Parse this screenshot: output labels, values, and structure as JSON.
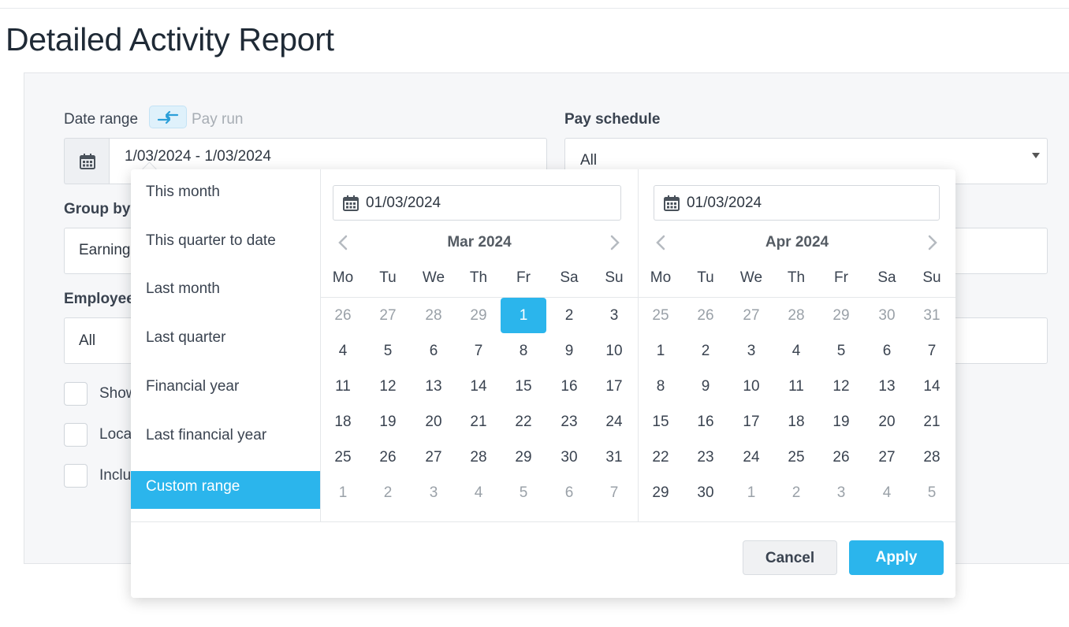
{
  "page": {
    "title": "Detailed Activity Report"
  },
  "form": {
    "date_range_label": "Date range",
    "pay_run_label": "Pay run",
    "date_range_value": "1/03/2024 - 1/03/2024",
    "pay_schedule_label": "Pay schedule",
    "pay_schedule_value": "All",
    "group_by_label": "Group by",
    "group_by_value": "Earnings",
    "employee_label": "Employee",
    "employee_value": "All",
    "checkboxes": [
      "Show",
      "Loca",
      "Inclu"
    ]
  },
  "picker": {
    "ranges": [
      "This month",
      "This quarter to date",
      "Last month",
      "Last quarter",
      "Financial year",
      "Last financial year",
      "Custom range"
    ],
    "active_range": "Custom range",
    "weekdays": [
      "Mo",
      "Tu",
      "We",
      "Th",
      "Fr",
      "Sa",
      "Su"
    ],
    "left": {
      "input": "01/03/2024",
      "title": "Mar 2024",
      "days": [
        [
          "26",
          "27",
          "28",
          "29",
          "1",
          "2",
          "3"
        ],
        [
          "4",
          "5",
          "6",
          "7",
          "8",
          "9",
          "10"
        ],
        [
          "11",
          "12",
          "13",
          "14",
          "15",
          "16",
          "17"
        ],
        [
          "18",
          "19",
          "20",
          "21",
          "22",
          "23",
          "24"
        ],
        [
          "25",
          "26",
          "27",
          "28",
          "29",
          "30",
          "31"
        ],
        [
          "1",
          "2",
          "3",
          "4",
          "5",
          "6",
          "7"
        ]
      ],
      "first_in_month": 4,
      "last_in_month": 34,
      "selected": 4
    },
    "right": {
      "input": "01/03/2024",
      "title": "Apr 2024",
      "days": [
        [
          "25",
          "26",
          "27",
          "28",
          "29",
          "30",
          "31"
        ],
        [
          "1",
          "2",
          "3",
          "4",
          "5",
          "6",
          "7"
        ],
        [
          "8",
          "9",
          "10",
          "11",
          "12",
          "13",
          "14"
        ],
        [
          "15",
          "16",
          "17",
          "18",
          "19",
          "20",
          "21"
        ],
        [
          "22",
          "23",
          "24",
          "25",
          "26",
          "27",
          "28"
        ],
        [
          "29",
          "30",
          "1",
          "2",
          "3",
          "4",
          "5"
        ]
      ],
      "first_in_month": 7,
      "last_in_month": 36,
      "selected": -1
    },
    "cancel_label": "Cancel",
    "apply_label": "Apply"
  },
  "colors": {
    "accent": "#2bb5ec"
  }
}
